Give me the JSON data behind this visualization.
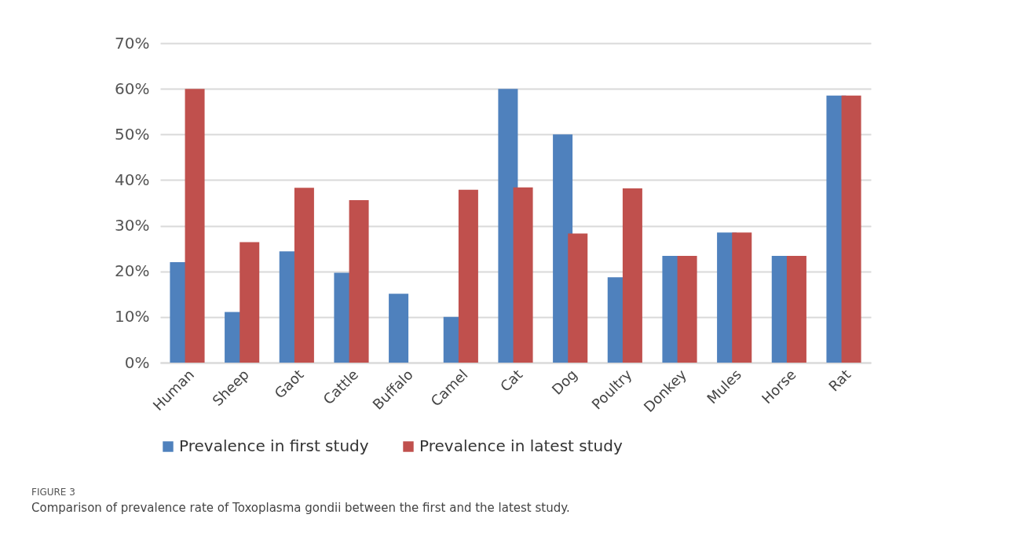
{
  "chart_data": {
    "type": "bar",
    "categories": [
      "Human",
      "Sheep",
      "Gaot",
      "Cattle",
      "Buffalo",
      "Camel",
      "Cat",
      "Dog",
      "Poultry",
      "Donkey",
      "Mules",
      "Horse",
      "Rat"
    ],
    "series": [
      {
        "name": "Prevalence in first study",
        "color": "#4f81bd",
        "values": [
          22,
          11.1,
          24.4,
          19.7,
          15.1,
          10,
          60,
          50,
          18.7,
          23.4,
          28.5,
          23.4,
          58.5
        ]
      },
      {
        "name": "Prevalence in latest study",
        "color": "#c0504d",
        "values": [
          60,
          26.4,
          38.3,
          35.6,
          null,
          37.9,
          38.4,
          28.3,
          38.2,
          23.4,
          28.5,
          23.4,
          58.5
        ]
      }
    ],
    "ylim": [
      0,
      70
    ],
    "yticks": [
      {
        "value": 0,
        "label": "0%"
      },
      {
        "value": 10,
        "label": "10%"
      },
      {
        "value": 20,
        "label": "20%"
      },
      {
        "value": 30,
        "label": "30%"
      },
      {
        "value": 40,
        "label": "40%"
      },
      {
        "value": 50,
        "label": "50%"
      },
      {
        "value": 60,
        "label": "60%"
      },
      {
        "value": 70,
        "label": "70%"
      }
    ],
    "grid": "y",
    "legend": "bottom",
    "annotations": [
      "FIGURE 3",
      "Comparison of prevalence rate of Toxoplasma gondii between the first and the latest study."
    ]
  }
}
